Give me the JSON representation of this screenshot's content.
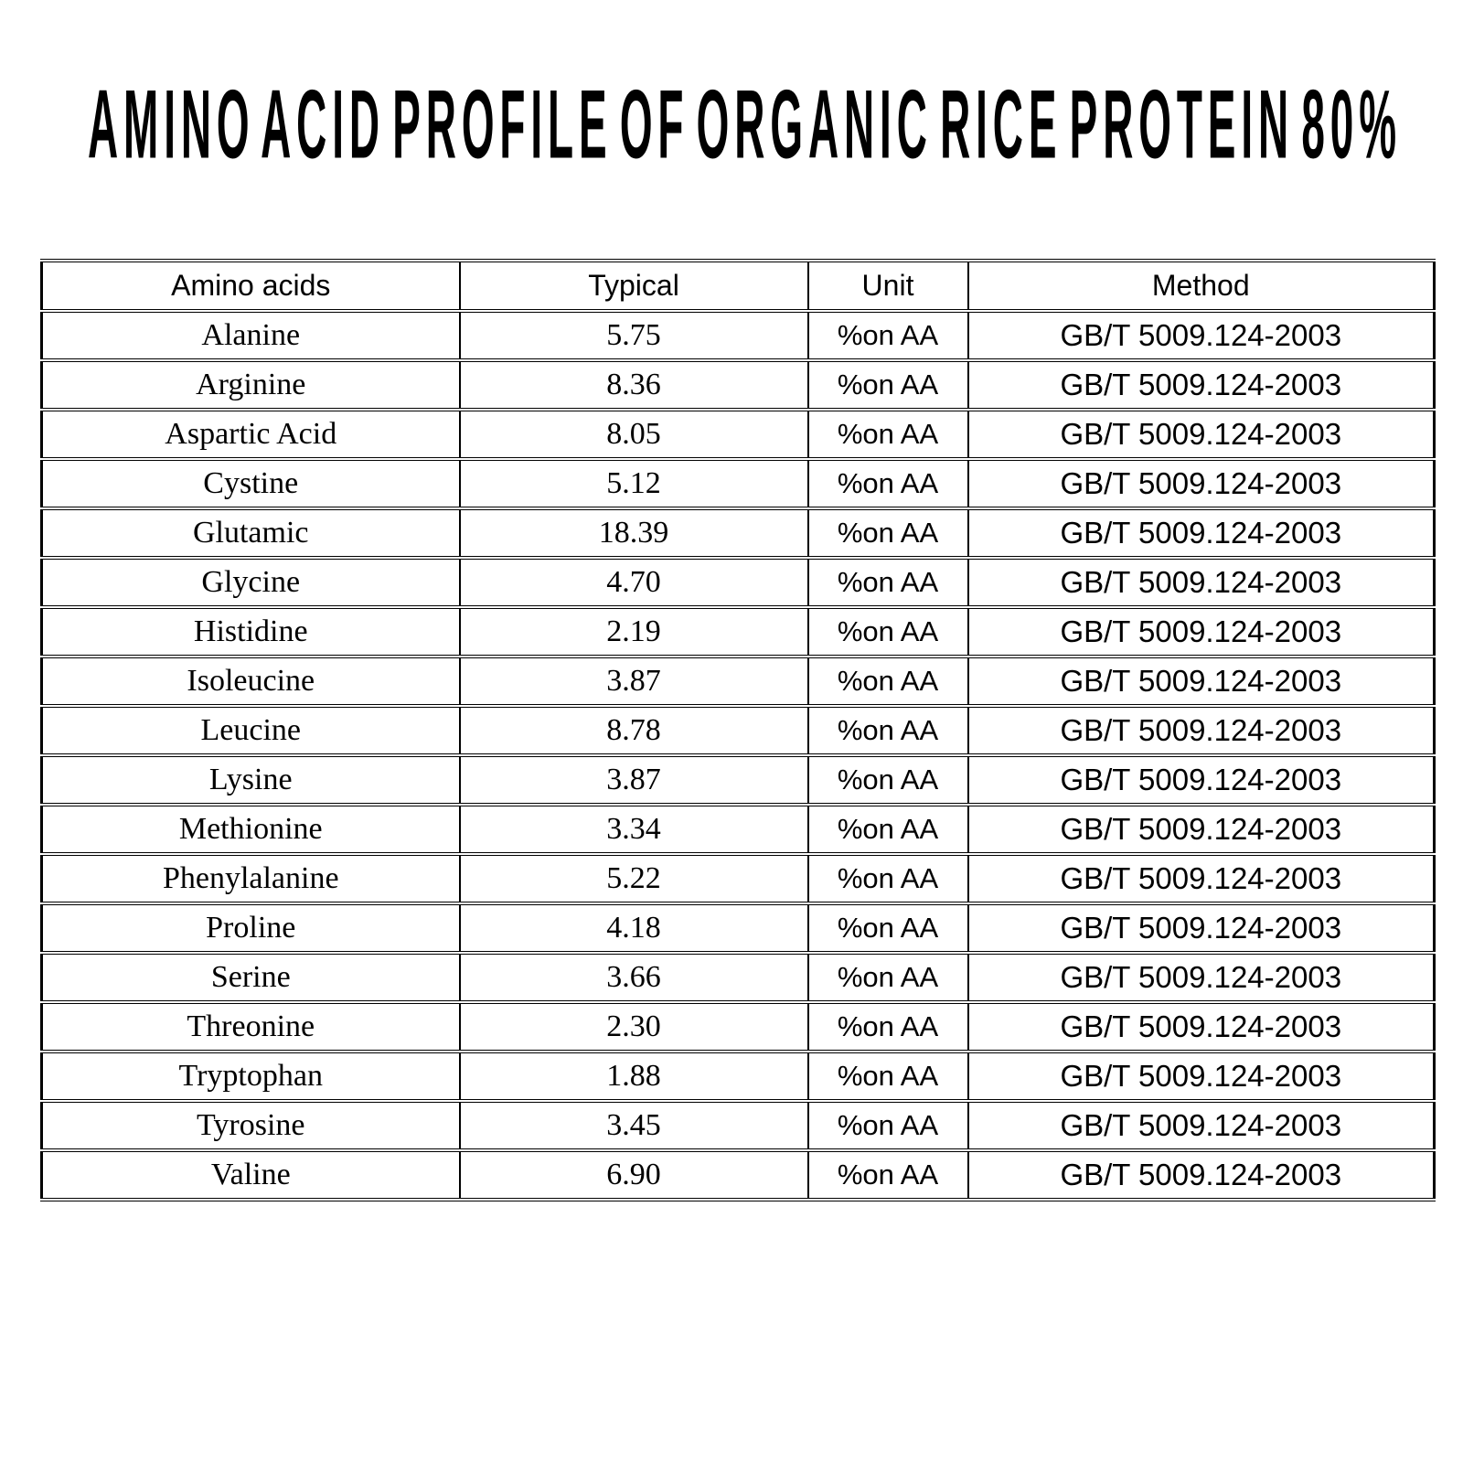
{
  "title": "AMINO ACID PROFILE OF ORGANIC RICE PROTEIN 80%",
  "table": {
    "headers": [
      "Amino acids",
      "Typical",
      "Unit",
      "Method"
    ],
    "rows": [
      {
        "name": "Alanine",
        "typical": "5.75",
        "unit": "%on AA",
        "method": "GB/T 5009.124-2003"
      },
      {
        "name": "Arginine",
        "typical": "8.36",
        "unit": "%on AA",
        "method": "GB/T 5009.124-2003"
      },
      {
        "name": "Aspartic Acid",
        "typical": "8.05",
        "unit": "%on AA",
        "method": "GB/T 5009.124-2003"
      },
      {
        "name": "Cystine",
        "typical": "5.12",
        "unit": "%on AA",
        "method": "GB/T 5009.124-2003"
      },
      {
        "name": "Glutamic",
        "typical": "18.39",
        "unit": "%on AA",
        "method": "GB/T 5009.124-2003"
      },
      {
        "name": "Glycine",
        "typical": "4.70",
        "unit": "%on AA",
        "method": "GB/T 5009.124-2003"
      },
      {
        "name": "Histidine",
        "typical": "2.19",
        "unit": "%on AA",
        "method": "GB/T 5009.124-2003"
      },
      {
        "name": "Isoleucine",
        "typical": "3.87",
        "unit": "%on AA",
        "method": "GB/T 5009.124-2003"
      },
      {
        "name": "Leucine",
        "typical": "8.78",
        "unit": "%on AA",
        "method": "GB/T 5009.124-2003"
      },
      {
        "name": "Lysine",
        "typical": "3.87",
        "unit": "%on AA",
        "method": "GB/T 5009.124-2003"
      },
      {
        "name": "Methionine",
        "typical": "3.34",
        "unit": "%on AA",
        "method": "GB/T 5009.124-2003"
      },
      {
        "name": "Phenylalanine",
        "typical": "5.22",
        "unit": "%on AA",
        "method": "GB/T 5009.124-2003"
      },
      {
        "name": "Proline",
        "typical": "4.18",
        "unit": "%on AA",
        "method": "GB/T 5009.124-2003"
      },
      {
        "name": "Serine",
        "typical": "3.66",
        "unit": "%on AA",
        "method": "GB/T 5009.124-2003"
      },
      {
        "name": "Threonine",
        "typical": "2.30",
        "unit": "%on AA",
        "method": "GB/T 5009.124-2003"
      },
      {
        "name": "Tryptophan",
        "typical": "1.88",
        "unit": "%on AA",
        "method": "GB/T 5009.124-2003"
      },
      {
        "name": "Tyrosine",
        "typical": "3.45",
        "unit": "%on AA",
        "method": "GB/T 5009.124-2003"
      },
      {
        "name": "Valine",
        "typical": "6.90",
        "unit": "%on AA",
        "method": "GB/T 5009.124-2003"
      }
    ]
  }
}
